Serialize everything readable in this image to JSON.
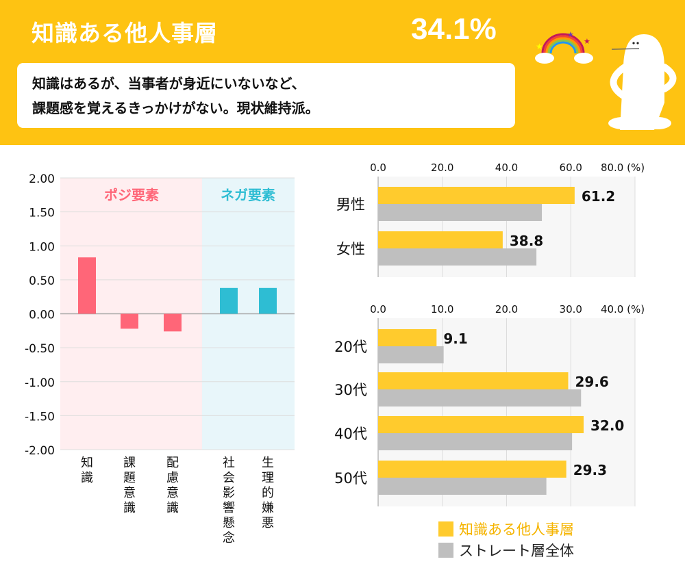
{
  "header": {
    "title": "知識ある他人事層",
    "percent": "34.1%",
    "description_line1": "知識はあるが、当事者が身近にいないなど、",
    "description_line2": "課題感を覚えるきっかけがない。現状維持派。"
  },
  "colors": {
    "header_bg": "#FEC312",
    "positive": "#FF6678",
    "negative": "#2EBDD3",
    "segment": "#FFCB2D",
    "overall": "#BFBFBF"
  },
  "chart_data": [
    {
      "type": "bar",
      "region_labels": [
        "ポジ要素",
        "ネガ要素"
      ],
      "categories": [
        "知識",
        "課題意識",
        "配慮意識",
        "社会影響懸念",
        "生理的嫌悪"
      ],
      "values": [
        0.83,
        -0.22,
        -0.26,
        0.38,
        0.38
      ],
      "groups": [
        "ポジ要素",
        "ポジ要素",
        "ポジ要素",
        "ネガ要素",
        "ネガ要素"
      ],
      "ylim": [
        -2,
        2
      ],
      "yticks": [
        "2.00",
        "1.50",
        "1.00",
        "0.50",
        "0.00",
        "-0.50",
        "-1.00",
        "-1.50",
        "-2.00"
      ],
      "grid": true
    },
    {
      "type": "bar",
      "orientation": "horizontal",
      "categories": [
        "男性",
        "女性"
      ],
      "xticks": [
        "0.0",
        "20.0",
        "40.0",
        "60.0",
        "80.0 (%)"
      ],
      "xlim": [
        0,
        80
      ],
      "series": [
        {
          "name": "知識ある他人事層",
          "values": [
            61.2,
            38.8
          ],
          "labels": [
            "61.2",
            "38.8"
          ]
        },
        {
          "name": "ストレート層全体",
          "values": [
            51.0,
            49.3
          ]
        }
      ]
    },
    {
      "type": "bar",
      "orientation": "horizontal",
      "categories": [
        "20代",
        "30代",
        "40代",
        "50代"
      ],
      "xticks": [
        "0.0",
        "10.0",
        "20.0",
        "30.0",
        "40.0 (%)"
      ],
      "xlim": [
        0,
        40
      ],
      "series": [
        {
          "name": "知識ある他人事層",
          "values": [
            9.1,
            29.6,
            32.0,
            29.3
          ],
          "labels": [
            "9.1",
            "29.6",
            "32.0",
            "29.3"
          ]
        },
        {
          "name": "ストレート層全体",
          "values": [
            10.2,
            31.6,
            30.2,
            26.2
          ]
        }
      ]
    }
  ],
  "legend": [
    {
      "label": "知識ある他人事層"
    },
    {
      "label": "ストレート層全体"
    }
  ]
}
